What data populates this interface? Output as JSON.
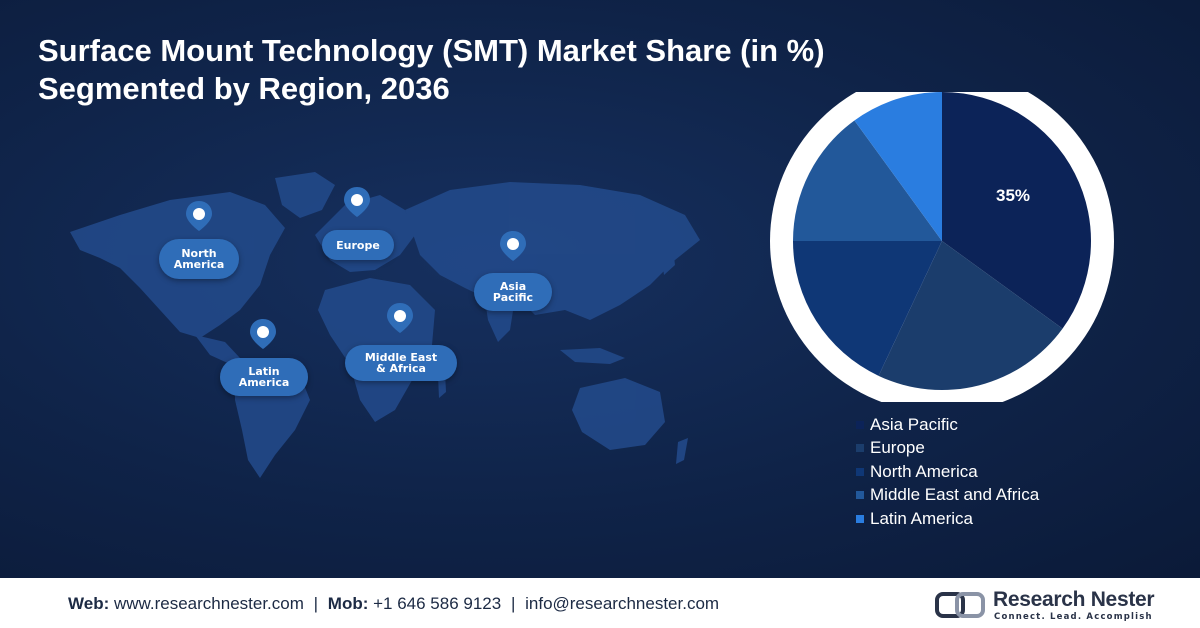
{
  "title": {
    "line1": "Surface Mount Technology (SMT) Market Share (in %)",
    "line2": "Segmented by Region, 2036"
  },
  "map_labels": [
    {
      "text": "North\nAmerica"
    },
    {
      "text": "Europe"
    },
    {
      "text": "Asia\nPacific"
    },
    {
      "text": "Latin\nAmerica"
    },
    {
      "text": "Middle East\n& Africa"
    }
  ],
  "chart_data": {
    "type": "pie",
    "title": "Surface Mount Technology (SMT) Market Share (in %) Segmented by Region, 2036",
    "slices": [
      {
        "label": "Asia Pacific",
        "value": 35,
        "color": "#0c2358",
        "shown_label": "35%"
      },
      {
        "label": "Europe",
        "value": 22,
        "color": "#1b3d6c"
      },
      {
        "label": "North America",
        "value": 18,
        "color": "#0f3776"
      },
      {
        "label": "Middle East and Africa",
        "value": 15,
        "color": "#22589a"
      },
      {
        "label": "Latin America",
        "value": 10,
        "color": "#2a7de0"
      }
    ],
    "legend": "bottom-right"
  },
  "footer": {
    "web_label": "Web:",
    "web": "www.researchnester.com",
    "mob_label": "Mob:",
    "mob": "+1 646 586 9123",
    "email": "info@researchnester.com",
    "separator": "|"
  },
  "logo": {
    "name": "Research Nester",
    "tagline": "Connect. Lead. Accomplish"
  },
  "colors": {
    "background": "#0f2348",
    "label_pill": "#2f6db8",
    "pie_ring": "#ffffff"
  }
}
